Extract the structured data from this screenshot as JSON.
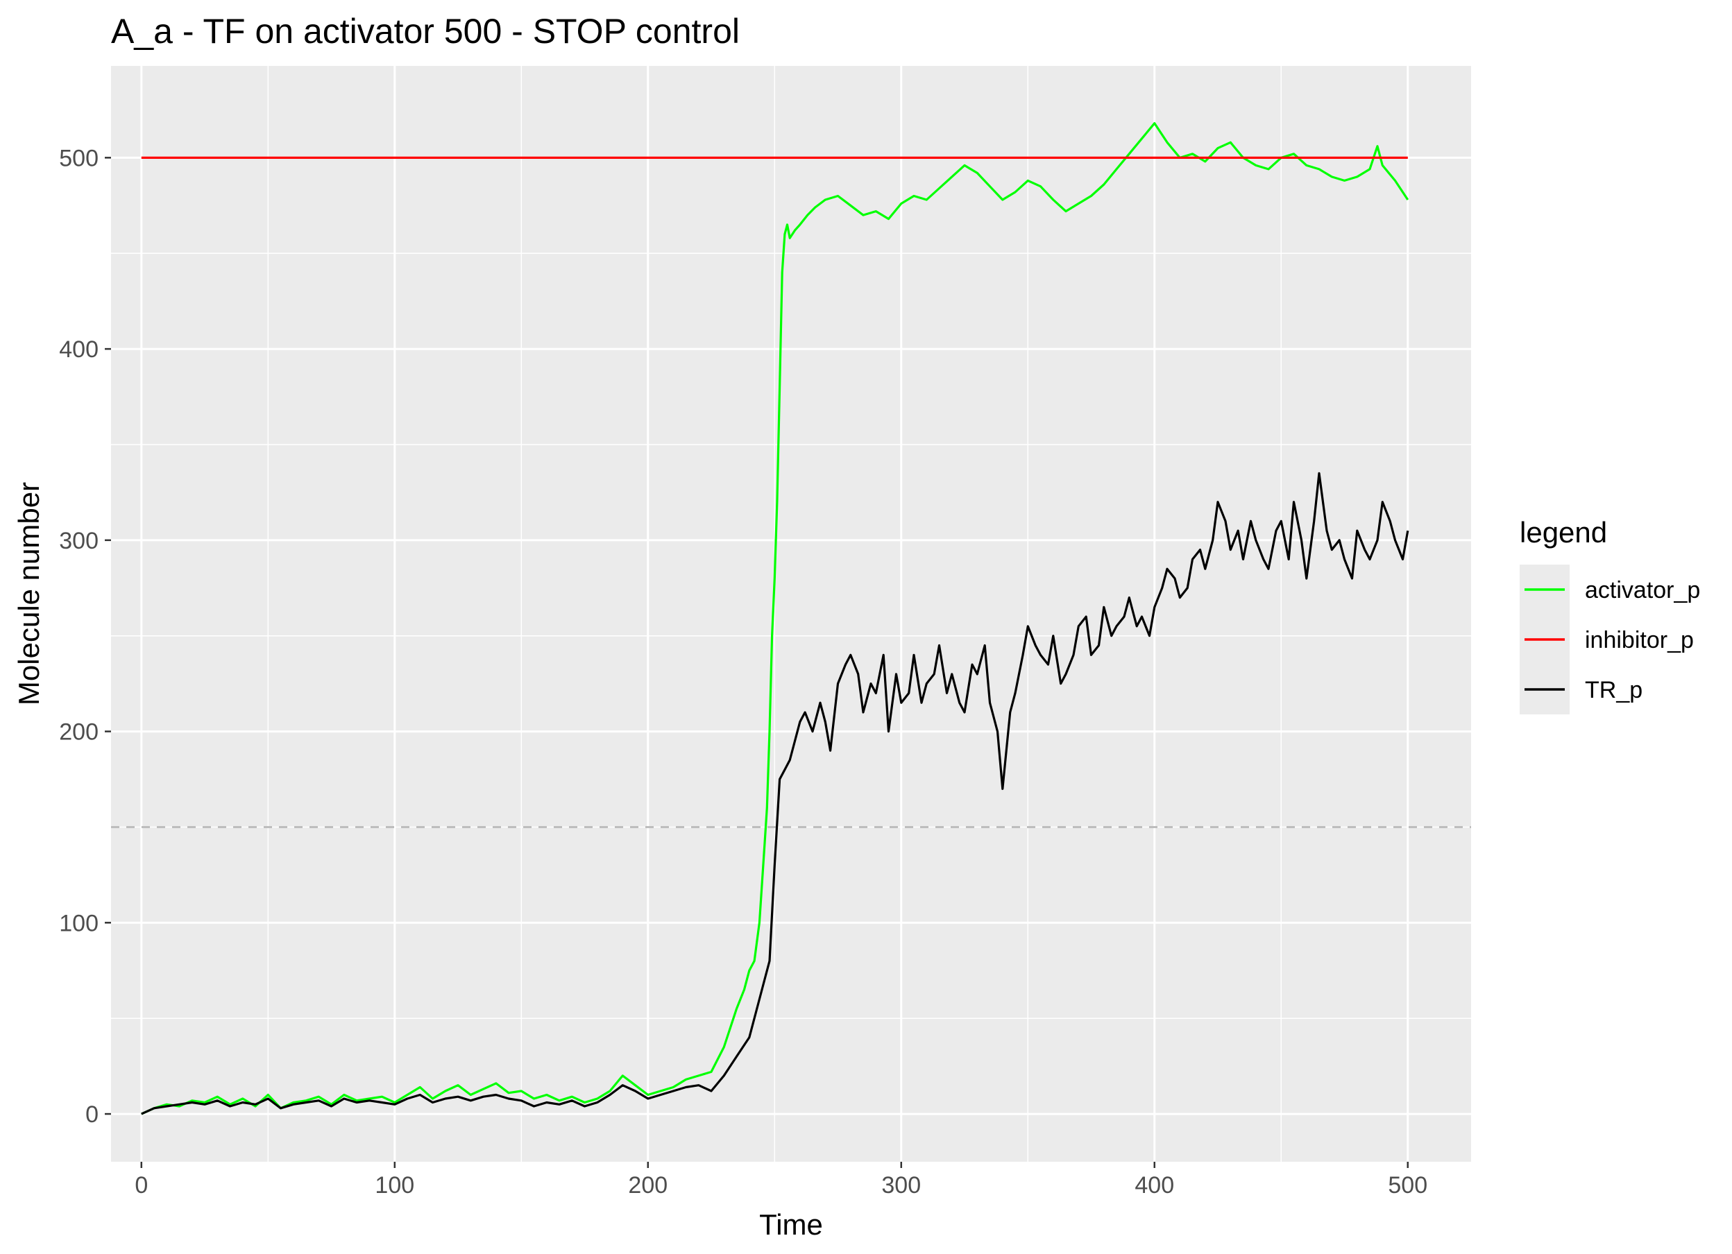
{
  "chart_data": {
    "type": "line",
    "title": "A_a - TF on activator 500 - STOP control",
    "xlabel": "Time",
    "ylabel": "Molecule number",
    "xlim": [
      -12,
      525
    ],
    "ylim": [
      -25,
      548
    ],
    "x_ticks": [
      0,
      100,
      200,
      300,
      400,
      500
    ],
    "x_tick_labels": [
      "0",
      "100",
      "200",
      "300",
      "400",
      "500"
    ],
    "y_ticks": [
      0,
      100,
      200,
      300,
      400,
      500
    ],
    "y_tick_labels": [
      "0",
      "100",
      "200",
      "300",
      "400",
      "500"
    ],
    "grid": true,
    "legend": {
      "title": "legend",
      "placement": "right"
    },
    "reference_line": {
      "y": 150,
      "style": "dashed",
      "color": "#bdbdbd"
    },
    "colors": {
      "panel": "#ebebeb",
      "grid": "#ffffff"
    },
    "series": [
      {
        "name": "activator_p",
        "color": "#00ff00",
        "x": [
          0,
          5,
          10,
          15,
          20,
          25,
          30,
          35,
          40,
          45,
          50,
          55,
          60,
          65,
          70,
          75,
          80,
          85,
          90,
          95,
          100,
          105,
          110,
          115,
          120,
          125,
          130,
          135,
          140,
          145,
          150,
          155,
          160,
          165,
          170,
          175,
          180,
          185,
          190,
          195,
          200,
          205,
          210,
          215,
          220,
          225,
          230,
          235,
          238,
          240,
          242,
          244,
          246,
          247,
          248,
          249,
          250,
          251,
          252,
          253,
          254,
          255,
          256,
          258,
          260,
          263,
          266,
          270,
          275,
          280,
          285,
          290,
          295,
          300,
          305,
          310,
          315,
          320,
          325,
          330,
          335,
          340,
          345,
          350,
          355,
          360,
          365,
          370,
          375,
          380,
          385,
          390,
          395,
          400,
          405,
          410,
          415,
          420,
          425,
          430,
          435,
          440,
          445,
          450,
          455,
          460,
          465,
          470,
          475,
          480,
          485,
          488,
          490,
          495,
          500
        ],
        "y": [
          0,
          3,
          5,
          4,
          7,
          6,
          9,
          5,
          8,
          4,
          10,
          3,
          6,
          7,
          9,
          5,
          10,
          7,
          8,
          9,
          6,
          10,
          14,
          8,
          12,
          15,
          10,
          13,
          16,
          11,
          12,
          8,
          10,
          7,
          9,
          6,
          8,
          12,
          20,
          15,
          10,
          12,
          14,
          18,
          20,
          22,
          35,
          55,
          65,
          75,
          80,
          100,
          140,
          160,
          200,
          250,
          280,
          320,
          380,
          440,
          460,
          465,
          458,
          462,
          465,
          470,
          474,
          478,
          480,
          475,
          470,
          472,
          468,
          476,
          480,
          478,
          484,
          490,
          496,
          492,
          485,
          478,
          482,
          488,
          485,
          478,
          472,
          476,
          480,
          486,
          494,
          502,
          510,
          518,
          508,
          500,
          502,
          498,
          505,
          508,
          500,
          496,
          494,
          500,
          502,
          496,
          494,
          490,
          488,
          490,
          494,
          506,
          496,
          488,
          478
        ]
      },
      {
        "name": "inhibitor_p",
        "color": "#ff0000",
        "x": [
          0,
          500
        ],
        "y": [
          500,
          500
        ]
      },
      {
        "name": "TR_p",
        "color": "#000000",
        "x": [
          0,
          5,
          10,
          15,
          20,
          25,
          30,
          35,
          40,
          45,
          50,
          55,
          60,
          65,
          70,
          75,
          80,
          85,
          90,
          95,
          100,
          105,
          110,
          115,
          120,
          125,
          130,
          135,
          140,
          145,
          150,
          155,
          160,
          165,
          170,
          175,
          180,
          185,
          190,
          195,
          200,
          205,
          210,
          215,
          220,
          225,
          230,
          235,
          240,
          244,
          246,
          248,
          250,
          252,
          254,
          256,
          258,
          260,
          262,
          265,
          268,
          270,
          272,
          275,
          278,
          280,
          283,
          285,
          288,
          290,
          293,
          295,
          298,
          300,
          303,
          305,
          308,
          310,
          313,
          315,
          318,
          320,
          323,
          325,
          328,
          330,
          333,
          335,
          338,
          340,
          343,
          345,
          348,
          350,
          353,
          355,
          358,
          360,
          363,
          365,
          368,
          370,
          373,
          375,
          378,
          380,
          383,
          385,
          388,
          390,
          393,
          395,
          398,
          400,
          403,
          405,
          408,
          410,
          413,
          415,
          418,
          420,
          423,
          425,
          428,
          430,
          433,
          435,
          438,
          440,
          443,
          445,
          448,
          450,
          453,
          455,
          458,
          460,
          463,
          465,
          468,
          470,
          473,
          475,
          478,
          480,
          483,
          485,
          488,
          490,
          493,
          495,
          498,
          500
        ],
        "y": [
          0,
          3,
          4,
          5,
          6,
          5,
          7,
          4,
          6,
          5,
          8,
          3,
          5,
          6,
          7,
          4,
          8,
          6,
          7,
          6,
          5,
          8,
          10,
          6,
          8,
          9,
          7,
          9,
          10,
          8,
          7,
          4,
          6,
          5,
          7,
          4,
          6,
          10,
          15,
          12,
          8,
          10,
          12,
          14,
          15,
          12,
          20,
          30,
          40,
          60,
          70,
          80,
          130,
          175,
          180,
          185,
          195,
          205,
          210,
          200,
          215,
          205,
          190,
          225,
          235,
          240,
          230,
          210,
          225,
          220,
          240,
          200,
          230,
          215,
          220,
          240,
          215,
          225,
          230,
          245,
          220,
          230,
          215,
          210,
          235,
          230,
          245,
          215,
          200,
          170,
          210,
          220,
          240,
          255,
          245,
          240,
          235,
          250,
          225,
          230,
          240,
          255,
          260,
          240,
          245,
          265,
          250,
          255,
          260,
          270,
          255,
          260,
          250,
          265,
          275,
          285,
          280,
          270,
          275,
          290,
          295,
          285,
          300,
          320,
          310,
          295,
          305,
          290,
          310,
          300,
          290,
          285,
          305,
          310,
          290,
          320,
          300,
          280,
          310,
          335,
          305,
          295,
          300,
          290,
          280,
          305,
          295,
          290,
          300,
          320,
          310,
          300,
          290,
          305
        ]
      }
    ]
  }
}
